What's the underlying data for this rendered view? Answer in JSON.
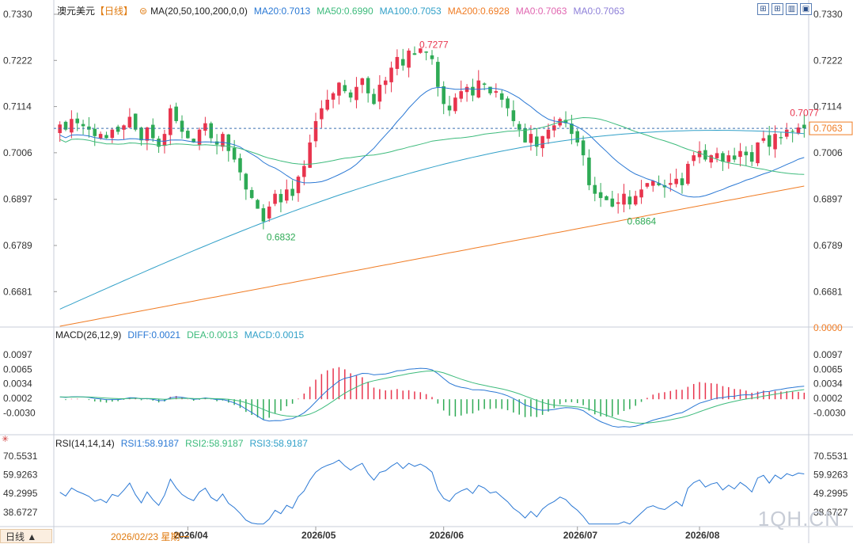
{
  "header": {
    "symbol": "澳元美元",
    "period_tag": "【日线】",
    "ma_label": "MA(20,50,100,200,0,0)",
    "ma20": "MA20:0.7013",
    "ma50": "MA50:0.6990",
    "ma100": "MA100:0.7053",
    "ma200": "MA200:0.6928",
    "ma0a": "MA0:0.7063",
    "ma0b": "MA0:0.7063"
  },
  "macd_header": {
    "label": "MACD(26,12,9)",
    "diff": "DIFF:0.0021",
    "dea": "DEA:0.0013",
    "macd": "MACD:0.0015"
  },
  "rsi_header": {
    "label": "RSI(14,14,14)",
    "rsi1": "RSI1:58.9187",
    "rsi2": "RSI2:58.9187",
    "rsi3": "RSI3:58.9187"
  },
  "footer": {
    "period_badge": "日线 ▲",
    "cursor_date": "2026/02/23 星期一",
    "watermark": "1QH.CN"
  },
  "colors": {
    "up": "#e8344d",
    "down": "#2eaa55",
    "ma20": "#2a78d4",
    "ma50": "#3dbb7c",
    "ma100": "#31a0c8",
    "ma200": "#f07c24",
    "ma0a": "#e066b0",
    "ma0b": "#8d7fd8",
    "price_tag": "#f07c24"
  },
  "chart_data": [
    {
      "type": "candlestick",
      "title": "澳元美元",
      "x_ticks": [
        "2026/04",
        "2026/05",
        "2026/06",
        "2026/07",
        "2026/08"
      ],
      "y_ticks": [
        "0.7330",
        "0.7222",
        "0.7114",
        "0.7006",
        "0.6897",
        "0.6789",
        "0.6681"
      ],
      "extra_right_tick": "0.0000",
      "ylim": [
        0.66,
        0.733
      ],
      "last_price": "0.7063",
      "annotations": {
        "high": "0.7277",
        "low1": "0.6832",
        "low2": "0.6864",
        "recent_high": "0.7077"
      },
      "series_ma": [
        {
          "name": "MA20",
          "value": 0.7013
        },
        {
          "name": "MA50",
          "value": 0.699
        },
        {
          "name": "MA100",
          "value": 0.7053
        },
        {
          "name": "MA200",
          "value": 0.6928
        }
      ],
      "closes": [
        0.7072,
        0.706,
        0.7085,
        0.7075,
        0.7068,
        0.706,
        0.7045,
        0.705,
        0.704,
        0.706,
        0.7055,
        0.707,
        0.709,
        0.706,
        0.7035,
        0.7065,
        0.704,
        0.702,
        0.705,
        0.711,
        0.708,
        0.7055,
        0.704,
        0.703,
        0.706,
        0.7075,
        0.704,
        0.7025,
        0.705,
        0.701,
        0.699,
        0.696,
        0.692,
        0.69,
        0.6875,
        0.6845,
        0.688,
        0.691,
        0.689,
        0.692,
        0.6905,
        0.695,
        0.6975,
        0.703,
        0.708,
        0.711,
        0.713,
        0.7145,
        0.717,
        0.715,
        0.7135,
        0.716,
        0.718,
        0.7145,
        0.712,
        0.7165,
        0.7175,
        0.7205,
        0.723,
        0.721,
        0.7245,
        0.7235,
        0.725,
        0.724,
        0.7225,
        0.716,
        0.712,
        0.7105,
        0.7135,
        0.715,
        0.716,
        0.714,
        0.7175,
        0.7165,
        0.7145,
        0.715,
        0.713,
        0.711,
        0.708,
        0.706,
        0.703,
        0.705,
        0.702,
        0.7045,
        0.706,
        0.707,
        0.7085,
        0.7075,
        0.705,
        0.703,
        0.7,
        0.693,
        0.691,
        0.69,
        0.6895,
        0.688,
        0.689,
        0.691,
        0.6885,
        0.6905,
        0.692,
        0.6935,
        0.694,
        0.693,
        0.6925,
        0.6935,
        0.6945,
        0.693,
        0.698,
        0.7,
        0.701,
        0.699,
        0.7,
        0.7005,
        0.6985,
        0.7,
        0.699,
        0.701,
        0.7,
        0.6985,
        0.703,
        0.704,
        0.702,
        0.705,
        0.704,
        0.706,
        0.7055,
        0.7065,
        0.7063
      ]
    },
    {
      "type": "line",
      "title": "MACD(26,12,9)",
      "y_ticks": [
        "0.0097",
        "0.0065",
        "0.0034",
        "0.0002",
        "-0.0030"
      ],
      "ylim": [
        -0.0062,
        0.0125
      ],
      "series": [
        {
          "name": "DIFF",
          "last": 0.0021
        },
        {
          "name": "DEA",
          "last": 0.0013
        },
        {
          "name": "MACD",
          "last": 0.0015
        }
      ]
    },
    {
      "type": "line",
      "title": "RSI(14,14,14)",
      "y_ticks": [
        "70.5531",
        "59.9263",
        "49.2995",
        "38.6727"
      ],
      "ylim": [
        31.0,
        75.0
      ],
      "series": [
        {
          "name": "RSI1",
          "last": 58.9187
        },
        {
          "name": "RSI2",
          "last": 58.9187
        },
        {
          "name": "RSI3",
          "last": 58.9187
        }
      ]
    }
  ]
}
